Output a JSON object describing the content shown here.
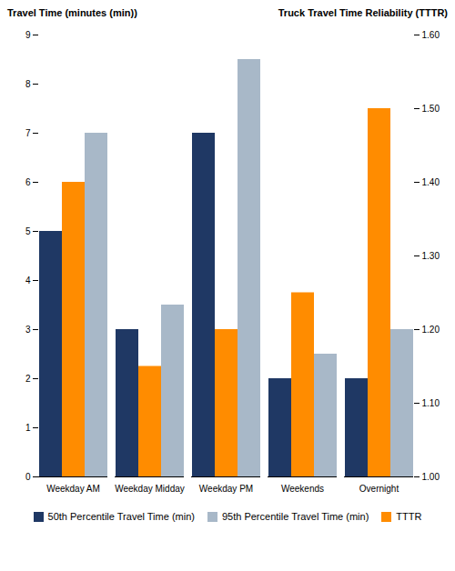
{
  "chart_data": {
    "type": "bar",
    "ylabel": "Travel Time (minutes (min))",
    "y2label": "Truck Travel Time Reliability (TTTR)",
    "categories": [
      "Weekday AM",
      "Weekday Midday",
      "Weekday PM",
      "Weekends",
      "Overnight"
    ],
    "series": [
      {
        "name": "50th Percentile Travel Time (min)",
        "color": "#1F3864",
        "values": [
          5,
          3,
          7,
          2,
          2
        ]
      },
      {
        "name": "TTTR",
        "color": "#FF8C00",
        "values": [
          1.4,
          1.15,
          1.2,
          1.25,
          1.5
        ],
        "axis": "y2"
      },
      {
        "name": "95th Percentile Travel Time (min)",
        "color": "#A8B8C8",
        "values": [
          7,
          3.5,
          8.5,
          2.5,
          3
        ]
      }
    ],
    "ylim": [
      0,
      9
    ],
    "yticks": [
      0,
      1,
      2,
      3,
      4,
      5,
      6,
      7,
      8,
      9
    ],
    "y2lim": [
      1.0,
      1.6
    ],
    "y2ticks": [
      {
        "value": 1.0,
        "label": "1.00"
      },
      {
        "value": 1.1,
        "label": "1.10"
      },
      {
        "value": 1.2,
        "label": "1.20"
      },
      {
        "value": 1.3,
        "label": "1.30"
      },
      {
        "value": 1.4,
        "label": "1.40"
      },
      {
        "value": 1.5,
        "label": "1.50"
      },
      {
        "value": 1.6,
        "label": "1.60"
      }
    ],
    "grid": false,
    "legend": "bottom"
  }
}
